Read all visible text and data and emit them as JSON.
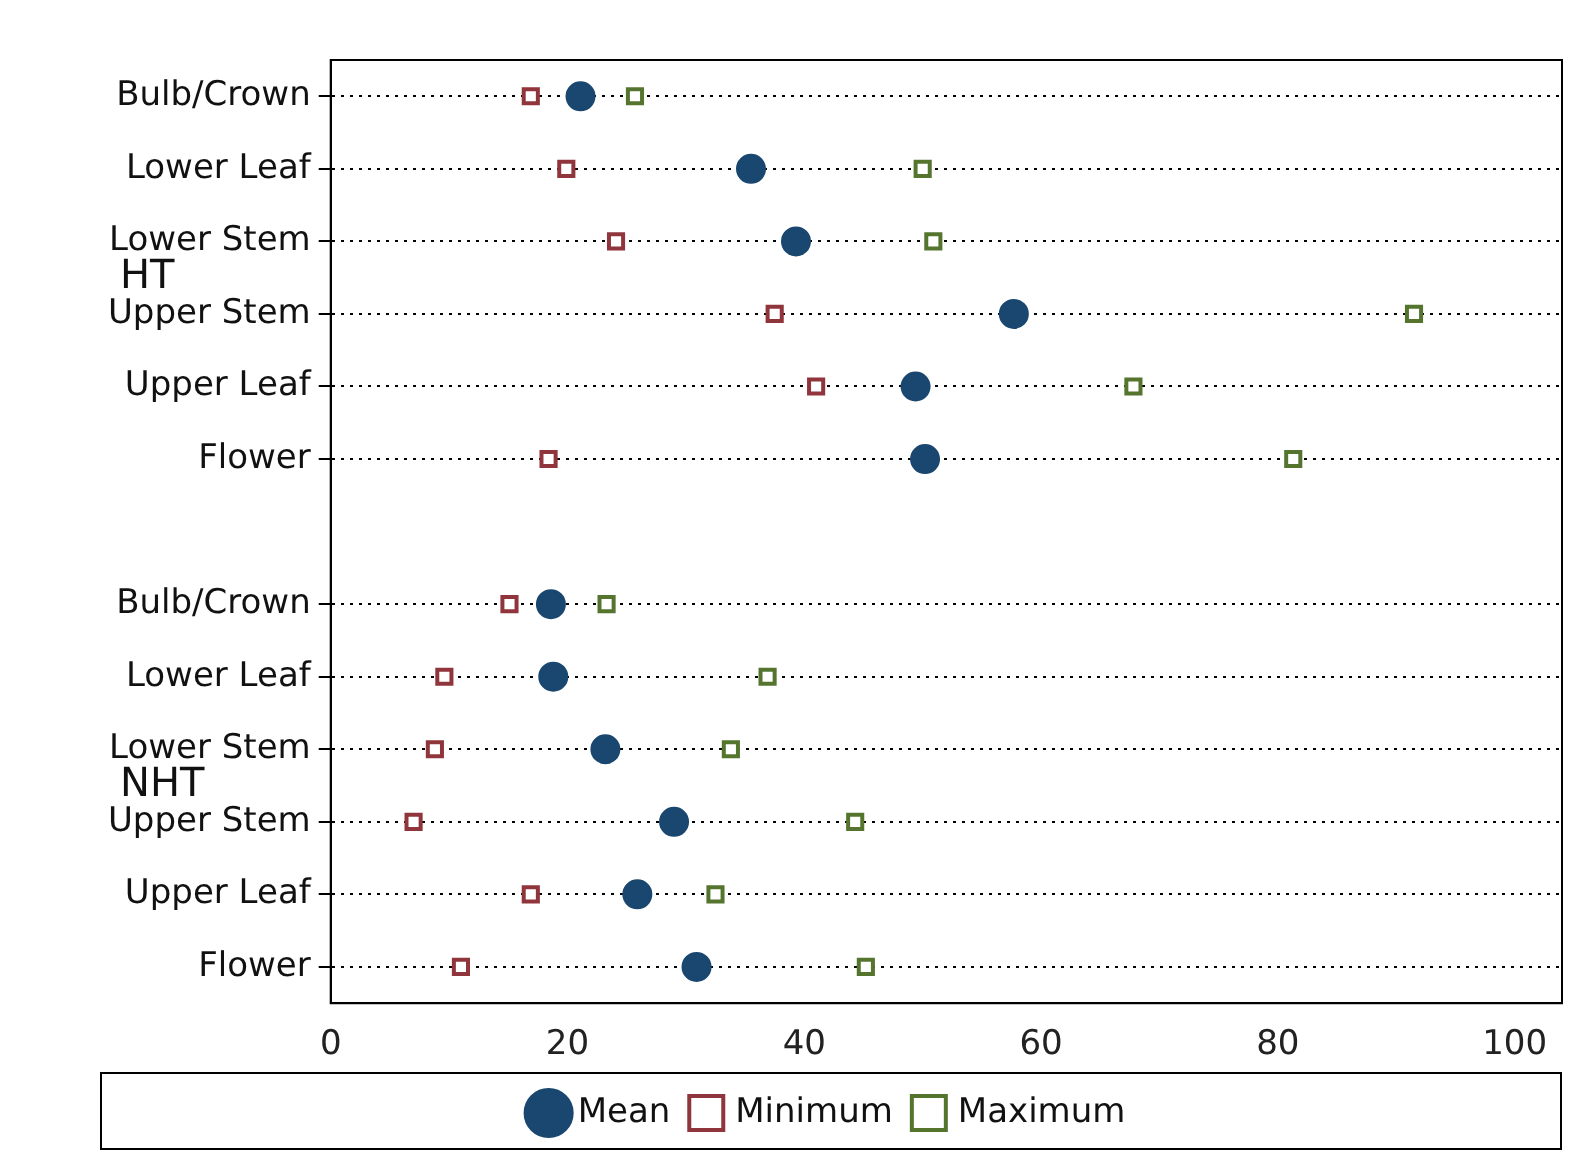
{
  "chart_data": {
    "type": "scatter",
    "orientation": "horizontal",
    "categories": [
      "Bulb/Crown",
      "Lower Leaf",
      "Lower Stem",
      "Upper Stem",
      "Upper Leaf",
      "Flower",
      null,
      "Bulb/Crown",
      "Lower Leaf",
      "Lower Stem",
      "Upper Stem",
      "Upper Leaf",
      "Flower"
    ],
    "series": [
      {
        "name": "Mean",
        "color": "#1a476f",
        "marker": "circle",
        "values": [
          21.1,
          35.5,
          39.3,
          57.7,
          49.4,
          50.2,
          null,
          18.6,
          18.8,
          23.2,
          29.0,
          25.9,
          30.9
        ]
      },
      {
        "name": "Minimum",
        "color": "#90353b",
        "marker": "square",
        "values": [
          16.9,
          19.9,
          24.1,
          37.5,
          41.0,
          18.4,
          null,
          15.1,
          9.6,
          8.8,
          7.0,
          16.9,
          11.0
        ]
      },
      {
        "name": "Maximum",
        "color": "#55752f",
        "marker": "square",
        "values": [
          25.7,
          50.0,
          50.9,
          91.5,
          67.8,
          81.3,
          null,
          23.3,
          36.9,
          33.8,
          44.3,
          32.5,
          45.2
        ]
      }
    ],
    "annotations": [
      "HT",
      "NHT"
    ],
    "xlim": [
      0,
      104
    ],
    "xticks": [
      0,
      20,
      40,
      60,
      80,
      100
    ],
    "grid": "y",
    "line_style": "dotted",
    "legend": "bottom"
  }
}
